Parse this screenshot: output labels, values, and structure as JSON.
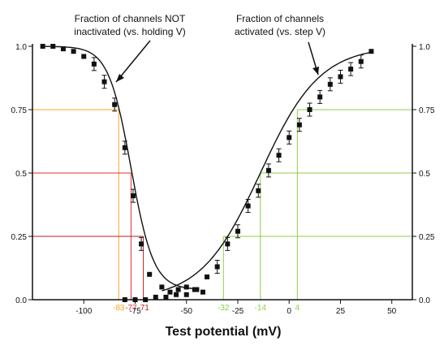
{
  "chart_data": {
    "type": "scatter",
    "xlabel": "Test potential (mV)",
    "xlim": [
      -125,
      60
    ],
    "ylim": [
      0,
      1
    ],
    "x_ticks": [
      "-100",
      "-75",
      "-50",
      "-25",
      "0",
      "25",
      "50"
    ],
    "x_tick_values": [
      -100,
      -75,
      -50,
      -25,
      0,
      25,
      50
    ],
    "y_ticks_left": [
      "0.0",
      "0.25",
      "0.5",
      "0.75",
      "1.0"
    ],
    "y_ticks_right": [
      "0.0",
      "0.25",
      "0.5",
      "0.75",
      "1.0"
    ],
    "y_tick_values": [
      0,
      0.25,
      0.5,
      0.75,
      1.0
    ],
    "annotations": {
      "inactivation_line1": "Fraction of channels NOT",
      "inactivation_line2": "inactivated (vs. holding V)",
      "activation_line1": "Fraction of channels",
      "activation_line2": "activated (vs. step V)"
    },
    "reference_levels": [
      {
        "y": 0.75,
        "color": "#f5a623",
        "inactivation_x": -83,
        "activation_x": 4
      },
      {
        "y": 0.5,
        "color": "#e03030",
        "inactivation_x": -77,
        "activation_x": -14
      },
      {
        "y": 0.25,
        "color": "#b22222",
        "inactivation_x": -71,
        "activation_x": -32
      }
    ],
    "reference_label_colors": {
      "inactivation_left": [
        "#f5a623",
        "#e03030",
        "#b22222"
      ],
      "activation_right": [
        "#8ccf4a",
        "#8ccf4a",
        "#8ccf4a"
      ]
    },
    "reference_x_labels": [
      {
        "text": "-83",
        "x": -83,
        "color": "#f5a623"
      },
      {
        "text": "-77",
        "x": -77,
        "color": "#e03030"
      },
      {
        "text": "-71",
        "x": -71,
        "color": "#b22222"
      },
      {
        "text": "-32",
        "x": -32,
        "color": "#8ccf4a"
      },
      {
        "text": "-14",
        "x": -14,
        "color": "#8ccf4a"
      },
      {
        "text": "4",
        "x": 4,
        "color": "#8ccf4a"
      }
    ],
    "inactivation_series": {
      "x": [
        -120,
        -115,
        -110,
        -105,
        -100,
        -95,
        -90,
        -85,
        -80,
        -76,
        -72,
        -68,
        -62,
        -58,
        -54,
        -50,
        -46,
        -42
      ],
      "y": [
        1.0,
        1.0,
        0.99,
        0.98,
        0.96,
        0.93,
        0.86,
        0.77,
        0.6,
        0.41,
        0.22,
        0.1,
        0.05,
        0.03,
        0.04,
        0.05,
        0.04,
        0.03
      ]
    },
    "activation_series": {
      "x": [
        -80,
        -75,
        -70,
        -65,
        -60,
        -55,
        -50,
        -45,
        -40,
        -35,
        -30,
        -25,
        -20,
        -15,
        -10,
        -5,
        0,
        5,
        10,
        15,
        20,
        25,
        30,
        35,
        40
      ],
      "y": [
        0.0,
        0.0,
        0.0,
        0.01,
        0.01,
        0.02,
        0.02,
        0.04,
        0.09,
        0.13,
        0.22,
        0.27,
        0.37,
        0.43,
        0.51,
        0.57,
        0.64,
        0.69,
        0.75,
        0.8,
        0.85,
        0.88,
        0.91,
        0.94,
        0.98
      ]
    },
    "axis_labels": {
      "left_y": "0.0;0.25;0.5;0.75;1.0",
      "right_y": "0.0;0.25;0.5;0.75;1.0"
    }
  }
}
